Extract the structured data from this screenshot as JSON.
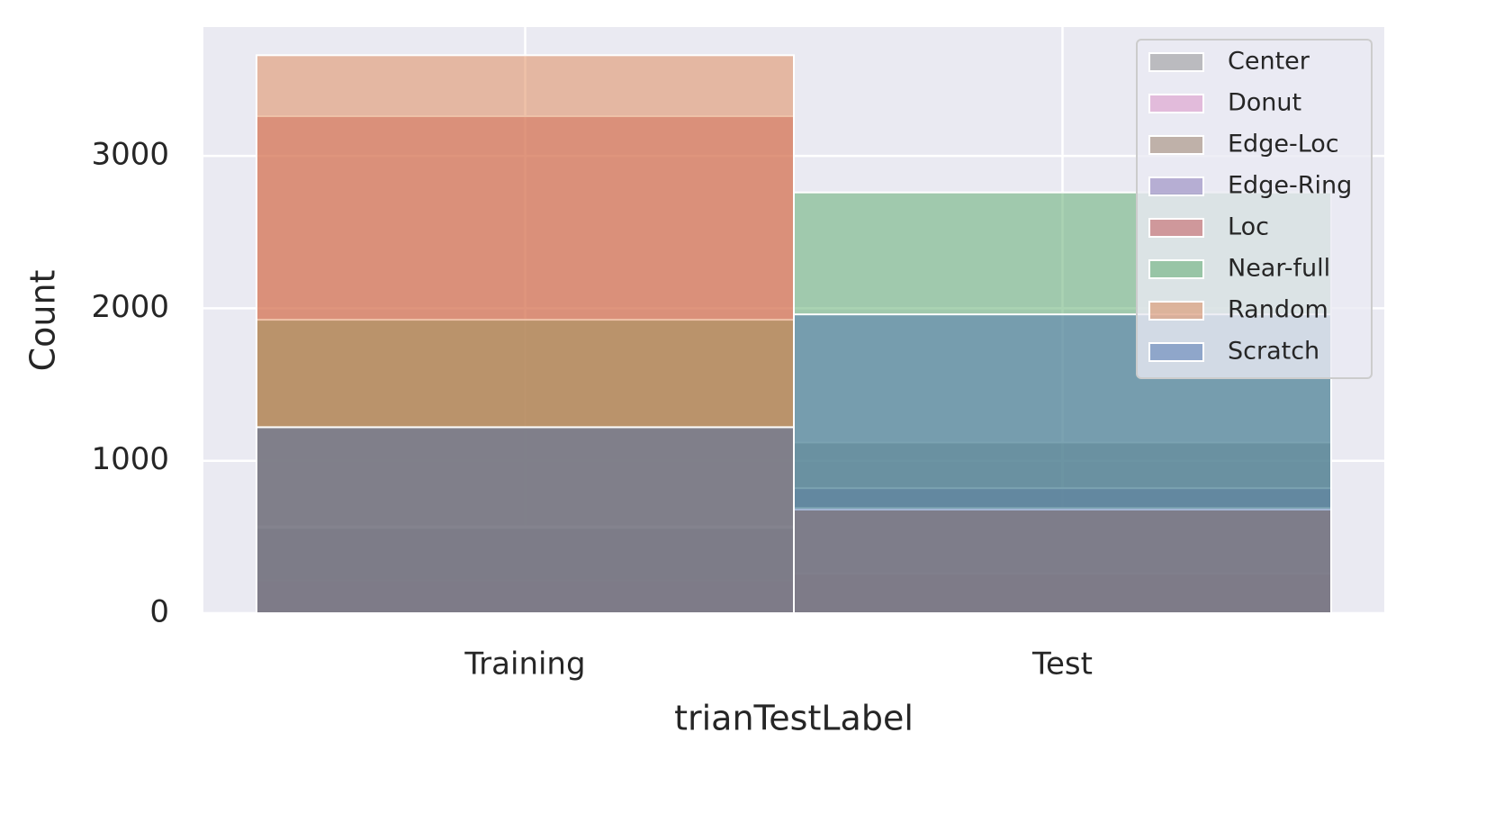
{
  "chart_data": {
    "type": "bar",
    "x_label": "trianTestLabel",
    "y_label": "Count",
    "categories": [
      "Training",
      "Test"
    ],
    "series": [
      {
        "name": "Center",
        "color": "#8c8c8c",
        "values": [
          1210,
          1120
        ]
      },
      {
        "name": "Donut",
        "color": "#da8bc3",
        "values": [
          215,
          255
        ]
      },
      {
        "name": "Edge-Loc",
        "color": "#937860",
        "values": [
          570,
          260
        ]
      },
      {
        "name": "Edge-Ring",
        "color": "#8172b3",
        "values": [
          560,
          820
        ]
      },
      {
        "name": "Loc",
        "color": "#c44e52",
        "values": [
          3260,
          690
        ]
      },
      {
        "name": "Near-full",
        "color": "#55a868",
        "values": [
          1925,
          2760
        ]
      },
      {
        "name": "Random",
        "color": "#dd8452",
        "values": [
          3660,
          680
        ]
      },
      {
        "name": "Scratch",
        "color": "#4c72b0",
        "values": [
          1220,
          1960
        ]
      }
    ],
    "ylim": [
      0,
      3845
    ],
    "yticks": [
      0,
      1000,
      2000,
      3000
    ],
    "grid": true,
    "legend": "upper right"
  }
}
